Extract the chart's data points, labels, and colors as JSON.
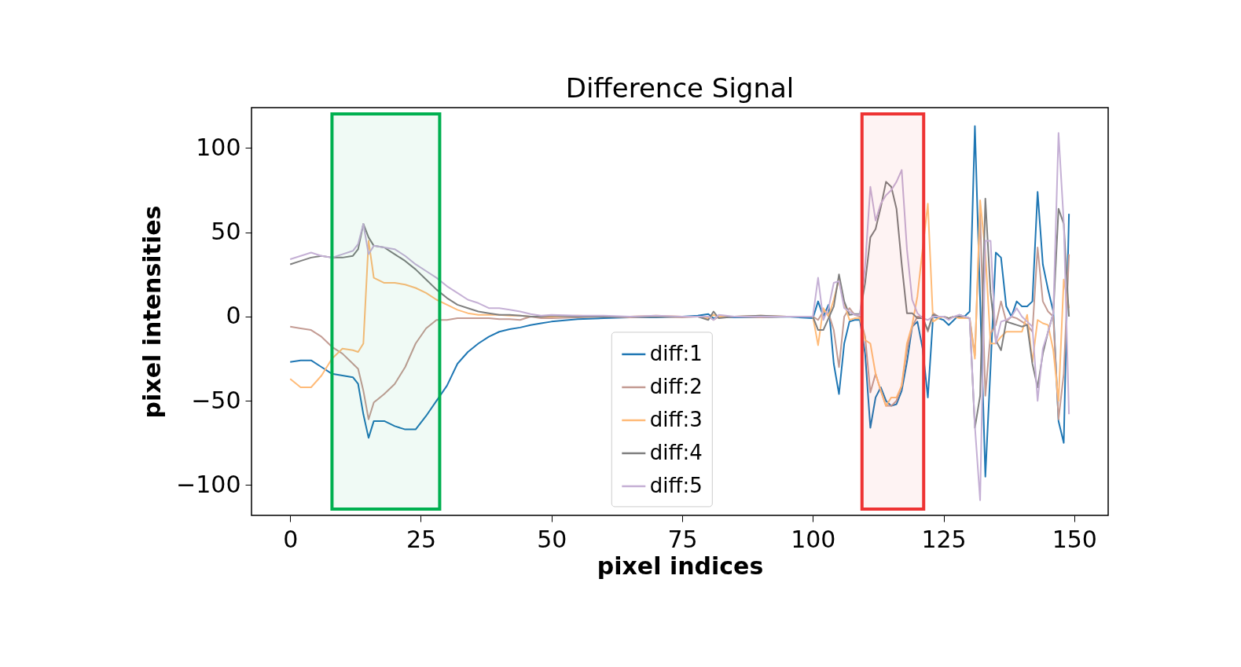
{
  "chart_data": {
    "type": "line",
    "title": "Difference Signal",
    "xlabel": "pixel indices",
    "ylabel": "pixel intensities",
    "x": [
      0,
      2,
      4,
      6,
      8,
      10,
      12,
      13,
      14,
      15,
      16,
      18,
      20,
      22,
      24,
      26,
      28,
      30,
      32,
      34,
      36,
      38,
      40,
      42,
      44,
      46,
      48,
      50,
      55,
      60,
      65,
      70,
      75,
      78,
      80,
      81,
      82,
      85,
      90,
      95,
      100,
      101,
      102,
      103,
      104,
      105,
      106,
      107,
      108,
      109,
      110,
      111,
      112,
      113,
      114,
      115,
      116,
      117,
      118,
      119,
      120,
      121,
      122,
      123,
      124,
      125,
      126,
      127,
      128,
      129,
      130,
      131,
      132,
      133,
      134,
      135,
      136,
      137,
      138,
      139,
      140,
      141,
      142,
      143,
      144,
      145,
      146,
      147,
      148,
      149
    ],
    "series": [
      {
        "name": "diff:1",
        "color": "#1f77b4",
        "values": [
          -27,
          -26,
          -26,
          -30,
          -34,
          -35,
          -36,
          -40,
          -58,
          -72,
          -62,
          -62,
          -65,
          -67,
          -67,
          -59,
          -50,
          -41,
          -28,
          -21,
          -16,
          -12,
          -9,
          -7.5,
          -6.5,
          -5,
          -4,
          -3,
          -1.5,
          -1,
          -0.5,
          -0.5,
          0,
          0.5,
          1.5,
          -1,
          0,
          -0.5,
          -0.5,
          0,
          -1,
          9,
          0,
          7,
          -28,
          -46,
          -16,
          -3,
          -2,
          -2,
          -22,
          -66,
          -48,
          -42,
          -50,
          -53,
          -52,
          -44,
          -27,
          -6,
          -3,
          -19,
          -48,
          0,
          -1,
          -2,
          -5,
          -2,
          1,
          0,
          3,
          113,
          10,
          -95,
          -30,
          38,
          35,
          6,
          0,
          9,
          6,
          6,
          9,
          74,
          31,
          16,
          3,
          -62,
          -75,
          61
        ]
      },
      {
        "name": "diff:2",
        "color": "#c49c94",
        "values": [
          -6,
          -7,
          -8,
          -12,
          -18,
          -22,
          -28,
          -31,
          -44,
          -61,
          -51,
          -46,
          -40,
          -30,
          -16,
          -7,
          -2,
          -2,
          -1,
          -1,
          -1,
          -1,
          -1.5,
          -1.5,
          -2,
          0,
          -1,
          -1,
          -0.5,
          0,
          -0.5,
          0,
          -0.5,
          0,
          0,
          -2,
          0,
          0,
          -0.5,
          0,
          0,
          -2,
          3,
          2,
          -8,
          -30,
          0,
          5,
          1,
          0,
          -12,
          -45,
          -34,
          -44,
          -53,
          -53,
          -50,
          -41,
          -20,
          -6,
          0,
          0,
          -9,
          2,
          0,
          0,
          -1,
          0,
          0,
          0,
          -1,
          -23,
          62,
          -47,
          -10,
          -5,
          9,
          -3,
          0,
          -1,
          -3,
          -5,
          -9,
          41,
          9,
          3,
          0,
          -61,
          -34,
          37
        ]
      },
      {
        "name": "diff:3",
        "color": "#ffbb78",
        "values": [
          -37,
          -42,
          -42,
          -35,
          -25,
          -19,
          -20,
          -21,
          -16,
          45,
          23,
          20,
          20,
          19,
          17,
          14,
          10,
          7,
          4,
          2,
          1,
          1,
          1,
          0.5,
          0.5,
          0,
          0,
          0,
          0.5,
          0,
          0,
          0.5,
          0,
          0,
          -1,
          1,
          0,
          0,
          0.5,
          0,
          0,
          -17,
          5,
          0,
          10,
          22,
          8,
          -2,
          -1,
          -1,
          -14,
          -16,
          -34,
          -44,
          -53,
          -48,
          -48,
          -41,
          -16,
          -5,
          12,
          40,
          67,
          -3,
          -1,
          0,
          -1,
          0,
          -1,
          -1,
          -1,
          -25,
          69,
          38,
          -16,
          -16,
          -12,
          -9,
          -9,
          -9,
          -9,
          1,
          -27,
          -2,
          -4,
          -5,
          -20,
          -50,
          22,
          5
        ]
      },
      {
        "name": "diff:4",
        "color": "#7f7f7f",
        "values": [
          31,
          33,
          35,
          36,
          35,
          35,
          36,
          40,
          55,
          47,
          42,
          41,
          37,
          33,
          28,
          22,
          16,
          11,
          7,
          5,
          3,
          2,
          1,
          1,
          0.5,
          0,
          0,
          0.5,
          0,
          0,
          0,
          0,
          0,
          0,
          -2,
          3,
          -1,
          0,
          0.5,
          0,
          0,
          -8,
          -8,
          -1,
          6,
          25,
          9,
          1,
          1.5,
          1.5,
          20,
          47,
          52,
          65,
          80,
          77,
          64,
          31,
          2,
          2,
          -1,
          -1,
          -8,
          1,
          0,
          0,
          -1,
          0,
          0,
          0,
          -1,
          -66,
          -47,
          70,
          14,
          -14,
          -20,
          -3,
          -4,
          -5,
          -6,
          -5,
          -28,
          -42,
          -22,
          -9,
          2,
          64,
          55,
          0
        ]
      },
      {
        "name": "diff:5",
        "color": "#c5b0d5",
        "values": [
          34,
          36,
          38,
          36,
          35,
          37,
          39,
          43,
          55,
          37,
          42,
          41,
          40,
          36,
          31,
          27,
          23,
          18,
          14,
          10,
          8,
          5,
          5,
          4,
          3,
          1.5,
          0.5,
          1,
          0.5,
          0.5,
          0,
          0.5,
          0,
          0,
          0,
          -2,
          1,
          0,
          0,
          0,
          0,
          23,
          -2,
          5,
          20,
          21,
          5,
          3,
          1,
          1,
          30,
          77,
          57,
          67,
          72,
          75,
          80,
          87,
          40,
          10,
          2,
          -1,
          -2,
          0,
          0,
          0,
          -2,
          0,
          1,
          0,
          -1,
          -65,
          -109,
          45,
          45,
          -16,
          -3,
          -2,
          0,
          5,
          0,
          -3,
          -6,
          -50,
          -19,
          -9,
          2,
          109,
          56,
          -58
        ]
      }
    ],
    "xlim": [
      -7.4,
      156.5
    ],
    "ylim": [
      -118,
      124
    ],
    "xticks": [
      0,
      25,
      50,
      75,
      100,
      125,
      150
    ],
    "yticks": [
      -100,
      -50,
      0,
      50,
      100
    ],
    "bands": [
      {
        "axis": "x",
        "from": 8,
        "to": 28.6,
        "color": "#00b050"
      },
      {
        "axis": "x",
        "from": 109.4,
        "to": 121.2,
        "color": "#ee3333"
      }
    ],
    "grid": false,
    "legend": "bottom",
    "marker": "none",
    "line_style": "solid"
  }
}
